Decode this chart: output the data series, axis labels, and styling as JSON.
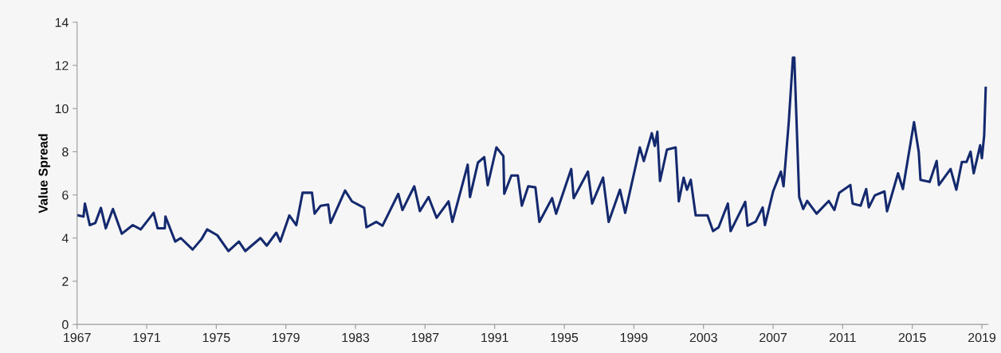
{
  "chart_data": {
    "type": "line",
    "ylabel": "Value Spread",
    "xlim": [
      1967,
      2019.35
    ],
    "xticks": [
      1967,
      1971,
      1975,
      1979,
      1983,
      1987,
      1991,
      1995,
      1999,
      2003,
      2007,
      2011,
      2015,
      2019
    ],
    "ylim": [
      0,
      14
    ],
    "yticks": [
      0,
      2,
      4,
      6,
      8,
      10,
      12,
      14
    ],
    "grid": false,
    "marker": "none",
    "line_style": "solid",
    "series": [
      {
        "color": "#14296e",
        "x": [
          1967.05,
          1967.37,
          1967.45,
          1967.73,
          1968.05,
          1968.37,
          1968.65,
          1969.06,
          1969.57,
          1970.2,
          1970.66,
          1971.4,
          1971.63,
          1972.04,
          1972.08,
          1972.64,
          1972.96,
          1973.64,
          1974.15,
          1974.47,
          1975.06,
          1975.7,
          1976.3,
          1976.67,
          1977.54,
          1977.9,
          1978.45,
          1978.68,
          1979.2,
          1979.6,
          1979.96,
          1980.5,
          1980.65,
          1981.0,
          1981.43,
          1981.57,
          1982.4,
          1982.8,
          1983.5,
          1983.63,
          1984.2,
          1984.55,
          1985.46,
          1985.7,
          1986.38,
          1986.7,
          1987.2,
          1987.66,
          1988.35,
          1988.57,
          1989.45,
          1989.58,
          1990.04,
          1990.4,
          1990.6,
          1991.1,
          1991.5,
          1991.55,
          1991.96,
          1992.33,
          1992.56,
          1992.93,
          1993.34,
          1993.57,
          1994.3,
          1994.53,
          1995.4,
          1995.54,
          1996.36,
          1996.6,
          1997.23,
          1997.55,
          1998.2,
          1998.5,
          1999.34,
          1999.57,
          2000.03,
          2000.2,
          2000.35,
          2000.5,
          2000.9,
          2001.4,
          2001.58,
          2001.86,
          2002.05,
          2002.27,
          2002.55,
          2003.23,
          2003.55,
          2003.87,
          2004.4,
          2004.56,
          2005.4,
          2005.53,
          2006.0,
          2006.4,
          2006.53,
          2007.0,
          2007.45,
          2007.6,
          2007.9,
          2008.14,
          2008.22,
          2008.5,
          2008.73,
          2008.96,
          2009.5,
          2010.2,
          2010.52,
          2010.8,
          2011.44,
          2011.57,
          2012.03,
          2012.35,
          2012.5,
          2012.85,
          2013.4,
          2013.55,
          2014.18,
          2014.46,
          2015.1,
          2015.37,
          2015.47,
          2016.0,
          2016.4,
          2016.53,
          2017.2,
          2017.53,
          2017.85,
          2018.12,
          2018.35,
          2018.53,
          2018.9,
          2019.0,
          2019.13,
          2019.22
        ],
        "values": [
          5.05,
          5.0,
          5.6,
          4.6,
          4.7,
          5.4,
          4.45,
          5.35,
          4.2,
          4.6,
          4.4,
          5.17,
          4.45,
          4.45,
          5.0,
          3.84,
          4.0,
          3.47,
          3.95,
          4.4,
          4.13,
          3.4,
          3.84,
          3.4,
          4.0,
          3.65,
          4.25,
          3.84,
          5.05,
          4.6,
          6.1,
          6.1,
          5.13,
          5.5,
          5.55,
          4.7,
          6.2,
          5.7,
          5.4,
          4.5,
          4.75,
          4.57,
          6.05,
          5.3,
          6.4,
          5.25,
          5.9,
          4.94,
          5.7,
          4.75,
          7.4,
          5.9,
          7.5,
          7.75,
          6.45,
          8.2,
          7.8,
          6.05,
          6.9,
          6.9,
          5.5,
          6.4,
          6.35,
          4.75,
          5.85,
          5.13,
          7.2,
          5.85,
          7.08,
          5.6,
          6.8,
          4.75,
          6.24,
          5.17,
          8.2,
          7.57,
          8.86,
          8.27,
          8.93,
          6.64,
          8.1,
          8.2,
          5.7,
          6.8,
          6.24,
          6.7,
          5.05,
          5.05,
          4.32,
          4.5,
          5.6,
          4.32,
          5.68,
          4.57,
          4.76,
          5.42,
          4.6,
          6.16,
          7.08,
          6.4,
          9.37,
          12.36,
          12.36,
          5.9,
          5.35,
          5.72,
          5.13,
          5.72,
          5.3,
          6.1,
          6.46,
          5.6,
          5.5,
          6.27,
          5.42,
          5.98,
          6.16,
          5.24,
          7.0,
          6.27,
          9.37,
          8.0,
          6.7,
          6.6,
          7.57,
          6.46,
          7.2,
          6.24,
          7.53,
          7.53,
          8.0,
          7.0,
          8.3,
          7.7,
          8.75,
          10.96
        ]
      }
    ]
  }
}
